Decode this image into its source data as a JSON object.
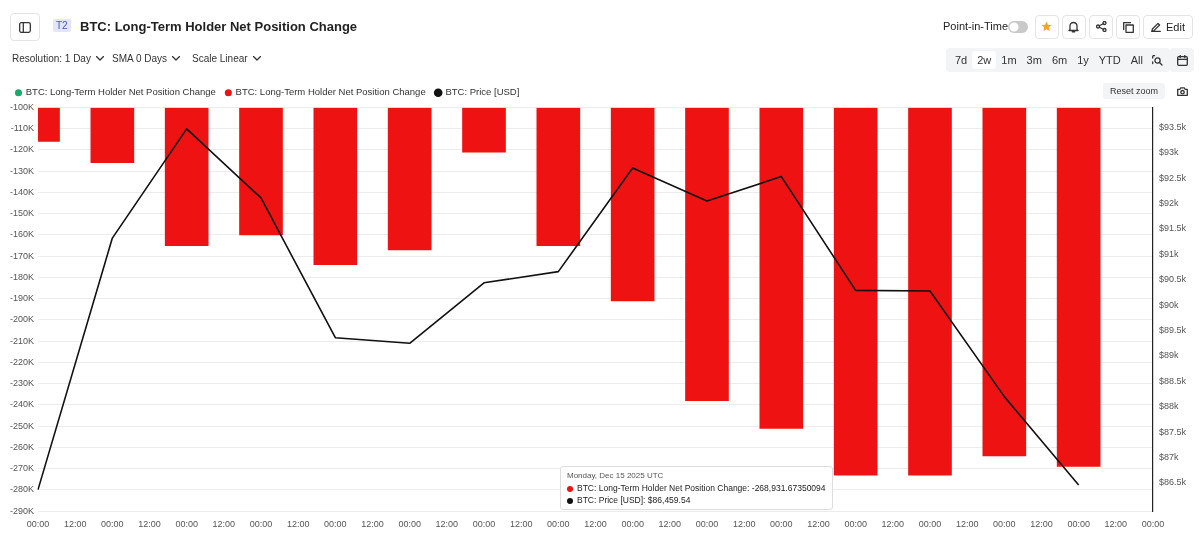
{
  "chart_data": {
    "type": "bar",
    "title": "BTC: Long-Term Holder Net Position Change",
    "categories": [
      "00:00",
      "12:00",
      "00:00",
      "12:00",
      "00:00",
      "12:00",
      "00:00",
      "12:00",
      "00:00",
      "12:00",
      "00:00",
      "12:00",
      "00:00",
      "12:00",
      "00:00",
      "12:00",
      "00:00",
      "12:00",
      "00:00",
      "12:00",
      "00:00",
      "12:00",
      "00:00",
      "12:00",
      "00:00",
      "12:00",
      "00:00",
      "12:00",
      "00:00",
      "12:00",
      "00:00"
    ],
    "series": [
      {
        "name": "BTC: Long-Term Holder Net Position Change",
        "color": "#1aa96b",
        "values": [
          null,
          null,
          null,
          null,
          null,
          null,
          null,
          null,
          null,
          null,
          null,
          null,
          null,
          null,
          null,
          null,
          null,
          null,
          null,
          null,
          null,
          null,
          null,
          null,
          null,
          null,
          null,
          null,
          null,
          null,
          null
        ]
      },
      {
        "name": "BTC: Long-Term Holder Net Position Change",
        "color": "#ee1212",
        "values": [
          -116000,
          null,
          -126000,
          null,
          -165000,
          null,
          -160000,
          null,
          -174000,
          null,
          -167000,
          null,
          -121000,
          null,
          -165000,
          null,
          -191000,
          null,
          -238000,
          null,
          -251000,
          null,
          -273000,
          null,
          -273000,
          null,
          -264000,
          null,
          -268931.67350094,
          null,
          null
        ]
      },
      {
        "name": "BTC: Price [USD]",
        "color": "#111111",
        "type": "line",
        "axis": "y2",
        "values": [
          86370,
          null,
          91320,
          null,
          93470,
          null,
          92110,
          null,
          89360,
          null,
          89250,
          null,
          90440,
          null,
          90660,
          null,
          92700,
          null,
          92050,
          null,
          92530,
          null,
          90290,
          null,
          90280,
          null,
          88200,
          null,
          86459.54,
          null,
          null
        ]
      }
    ],
    "ylim": [
      -290000,
      -100000
    ],
    "yticks": [
      {
        "value": -290000,
        "label": "-290K"
      },
      {
        "value": -280000,
        "label": "-280K"
      },
      {
        "value": -270000,
        "label": "-270K"
      },
      {
        "value": -260000,
        "label": "-260K"
      },
      {
        "value": -250000,
        "label": "-250K"
      },
      {
        "value": -240000,
        "label": "-240K"
      },
      {
        "value": -230000,
        "label": "-230K"
      },
      {
        "value": -220000,
        "label": "-220K"
      },
      {
        "value": -210000,
        "label": "-210K"
      },
      {
        "value": -200000,
        "label": "-200K"
      },
      {
        "value": -190000,
        "label": "-190K"
      },
      {
        "value": -180000,
        "label": "-180K"
      },
      {
        "value": -170000,
        "label": "-170K"
      },
      {
        "value": -160000,
        "label": "-160K"
      },
      {
        "value": -150000,
        "label": "-150K"
      },
      {
        "value": -140000,
        "label": "-140K"
      },
      {
        "value": -130000,
        "label": "-130K"
      },
      {
        "value": -120000,
        "label": "-120K"
      },
      {
        "value": -110000,
        "label": "-110K"
      },
      {
        "value": -100000,
        "label": "-100K"
      }
    ],
    "y2lim": [
      85945,
      93890
    ],
    "y2ticks": [
      {
        "value": 86500,
        "label": "$86.5k"
      },
      {
        "value": 87000,
        "label": "$87k"
      },
      {
        "value": 87500,
        "label": "$87.5k"
      },
      {
        "value": 88000,
        "label": "$88k"
      },
      {
        "value": 88500,
        "label": "$88.5k"
      },
      {
        "value": 89000,
        "label": "$89k"
      },
      {
        "value": 89500,
        "label": "$89.5k"
      },
      {
        "value": 90000,
        "label": "$90k"
      },
      {
        "value": 90500,
        "label": "$90.5k"
      },
      {
        "value": 91000,
        "label": "$91k"
      },
      {
        "value": 91500,
        "label": "$91.5k"
      },
      {
        "value": 92000,
        "label": "$92k"
      },
      {
        "value": 92500,
        "label": "$92.5k"
      },
      {
        "value": 93000,
        "label": "$93k"
      },
      {
        "value": 93500,
        "label": "$93.5k"
      }
    ],
    "grid": "y",
    "legend": "top left",
    "annotations": [
      "T2",
      "Resolution: 1 Day",
      "SMA 0 Days",
      "Scale Linear",
      "Point-in-Time",
      "Edit",
      "7d",
      "2w",
      "1m",
      "3m",
      "6m",
      "1y",
      "YTD",
      "All",
      "Reset zoom",
      "Monday, Dec 15 2025 UTC",
      "BTC: Long-Term Holder Net Position Change: -268,931.67350094",
      "BTC: Price [USD]: $86,459.54"
    ]
  }
}
